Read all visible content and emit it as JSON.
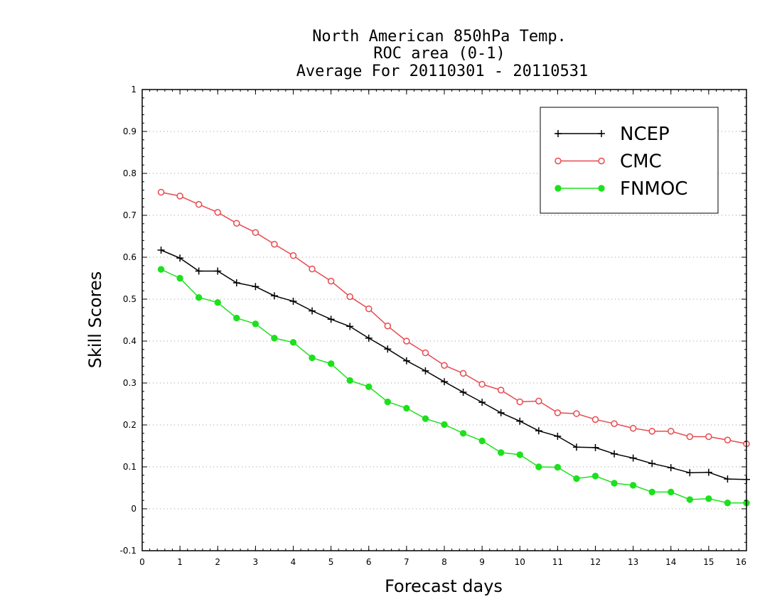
{
  "chart_data": {
    "type": "line",
    "title": [
      "North American 850hPa Temp.",
      "ROC area (0-1)",
      "Average For 20110301 - 20110531"
    ],
    "xlabel": "Forecast days",
    "ylabel": "Skill Scores",
    "xlim": [
      0,
      16
    ],
    "ylim": [
      -0.1,
      1
    ],
    "xticks": [
      "0",
      "1",
      "2",
      "3",
      "4",
      "5",
      "6",
      "7",
      "8",
      "9",
      "10",
      "11",
      "12",
      "13",
      "14",
      "15",
      "16"
    ],
    "yticks": [
      "-0.1",
      "0",
      "0.1",
      "0.2",
      "0.3",
      "0.4",
      "0.5",
      "0.6",
      "0.7",
      "0.8",
      "0.9",
      "1"
    ],
    "grid": "horizontal dotted",
    "legend_position": "top-right",
    "x": [
      0.5,
      1,
      1.5,
      2,
      2.5,
      3,
      3.5,
      4,
      4.5,
      5,
      5.5,
      6,
      6.5,
      7,
      7.5,
      8,
      8.5,
      9,
      9.5,
      10,
      10.5,
      11,
      11.5,
      12,
      12.5,
      13,
      13.5,
      14,
      14.5,
      15,
      15.5,
      16
    ],
    "series": [
      {
        "name": "NCEP",
        "color": "#000000",
        "marker": "plus",
        "values": [
          0.617,
          0.598,
          0.567,
          0.567,
          0.539,
          0.53,
          0.508,
          0.495,
          0.472,
          0.452,
          0.435,
          0.407,
          0.381,
          0.353,
          0.329,
          0.303,
          0.278,
          0.254,
          0.229,
          0.209,
          0.186,
          0.173,
          0.147,
          0.146,
          0.131,
          0.121,
          0.108,
          0.098,
          0.086,
          0.087,
          0.071,
          0.07
        ]
      },
      {
        "name": "CMC",
        "color": "#e8494e",
        "marker": "open-circle",
        "values": [
          0.755,
          0.746,
          0.726,
          0.707,
          0.681,
          0.659,
          0.631,
          0.604,
          0.572,
          0.543,
          0.506,
          0.477,
          0.436,
          0.4,
          0.372,
          0.342,
          0.323,
          0.297,
          0.283,
          0.255,
          0.257,
          0.229,
          0.227,
          0.213,
          0.203,
          0.192,
          0.185,
          0.185,
          0.172,
          0.172,
          0.164,
          0.155
        ]
      },
      {
        "name": "FNMOC",
        "color": "#1ee01e",
        "marker": "filled-circle",
        "values": [
          0.571,
          0.55,
          0.504,
          0.492,
          0.455,
          0.441,
          0.407,
          0.397,
          0.36,
          0.346,
          0.306,
          0.291,
          0.255,
          0.24,
          0.215,
          0.201,
          0.18,
          0.162,
          0.134,
          0.129,
          0.1,
          0.099,
          0.072,
          0.078,
          0.061,
          0.056,
          0.04,
          0.04,
          0.022,
          0.024,
          0.014,
          0.014
        ]
      }
    ]
  }
}
